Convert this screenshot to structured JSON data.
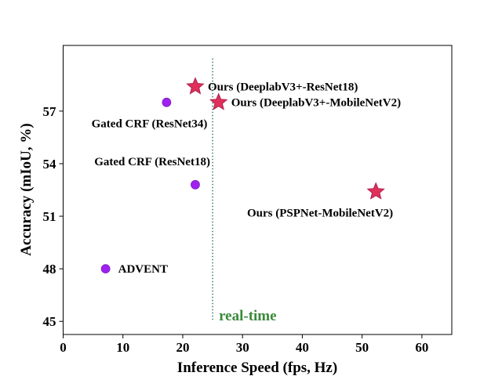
{
  "chart_data": {
    "type": "scatter",
    "title": "",
    "xlabel": "Inference Speed (fps, Hz)",
    "ylabel": "Accuracy (mIoU, %)",
    "xlim": [
      0,
      65
    ],
    "ylim": [
      44.25,
      60.75
    ],
    "xticks": [
      0,
      10,
      20,
      30,
      40,
      50,
      60
    ],
    "yticks": [
      45,
      48,
      51,
      54,
      57
    ],
    "grid": false,
    "points": [
      {
        "label": "Ours (DeeplabV3+-ResNet18)",
        "x": 22.1,
        "y": 58.4,
        "marker": "star",
        "color": "#e0305a",
        "label_pos": "right"
      },
      {
        "label": "Ours (DeeplabV3+-MobileNetV2)",
        "x": 26.0,
        "y": 57.5,
        "marker": "star",
        "color": "#e0305a",
        "label_pos": "right"
      },
      {
        "label": "Ours (PSPNet-MobileNetV2)",
        "x": 52.3,
        "y": 52.4,
        "marker": "star",
        "color": "#e0305a",
        "label_pos": "below"
      },
      {
        "label": "Gated CRF (ResNet34)",
        "x": 17.3,
        "y": 57.5,
        "marker": "circle",
        "color": "#a020f0",
        "label_pos": "below-left"
      },
      {
        "label": "Gated CRF (ResNet18)",
        "x": 22.1,
        "y": 52.8,
        "marker": "circle",
        "color": "#a020f0",
        "label_pos": "above-left"
      },
      {
        "label": "ADVENT",
        "x": 7.1,
        "y": 48.0,
        "marker": "circle",
        "color": "#a020f0",
        "label_pos": "right"
      }
    ],
    "annotations": [
      {
        "type": "vline",
        "x": 25,
        "y_from": 45,
        "y_to": 60,
        "style": "dotted",
        "color": "#3a7a5a",
        "label": "real-time",
        "label_color": "#3a8a3a"
      }
    ]
  }
}
